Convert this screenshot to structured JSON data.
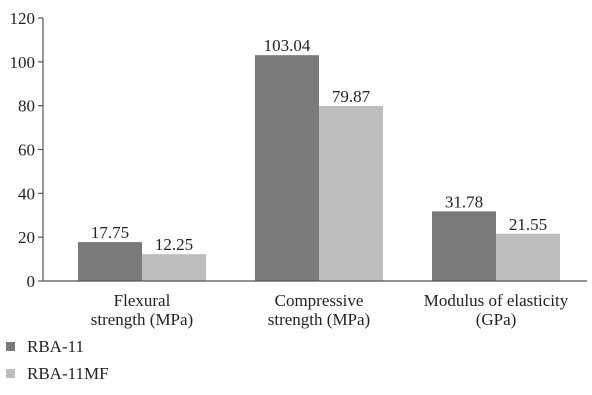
{
  "chart_data": {
    "type": "bar",
    "title": "",
    "xlabel": "",
    "ylabel": "",
    "ylim": [
      0,
      120
    ],
    "yticks": [
      0,
      20,
      40,
      60,
      80,
      100,
      120
    ],
    "grid": false,
    "legend_position": "bottom-left",
    "categories": [
      [
        "Flexural",
        "strength (MPa)"
      ],
      [
        "Compressive",
        "strength (MPa)"
      ],
      [
        "Modulus of elasticity",
        "(GPa)"
      ]
    ],
    "series": [
      {
        "name": "RBA-11",
        "color": "#7a7a7a",
        "values": [
          17.75,
          103.04,
          31.78
        ],
        "labels": [
          "17.75",
          "103.04",
          "31.78"
        ]
      },
      {
        "name": "RBA-11MF",
        "color": "#bdbdbd",
        "values": [
          12.25,
          79.87,
          21.55
        ],
        "labels": [
          "12.25",
          "79.87",
          "21.55"
        ]
      }
    ]
  }
}
